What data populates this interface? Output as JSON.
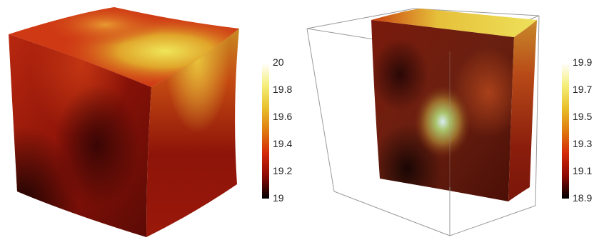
{
  "figures": [
    {
      "id": "left",
      "colorbar": {
        "min": 19,
        "max": 20,
        "ticks": [
          "20",
          "19.8",
          "19.6",
          "19.4",
          "19.2",
          "19"
        ]
      },
      "bounding_box": false
    },
    {
      "id": "right",
      "colorbar": {
        "min": 18.9,
        "max": 19.9,
        "ticks": [
          "19.9",
          "19.7",
          "19.5",
          "19.3",
          "19.1",
          "18.9"
        ]
      },
      "bounding_box": true
    }
  ],
  "colormap": [
    "#000000",
    "#8c0a05",
    "#d42a0a",
    "#e07a10",
    "#e8c02a",
    "#f5ee7a",
    "#ffffff"
  ]
}
